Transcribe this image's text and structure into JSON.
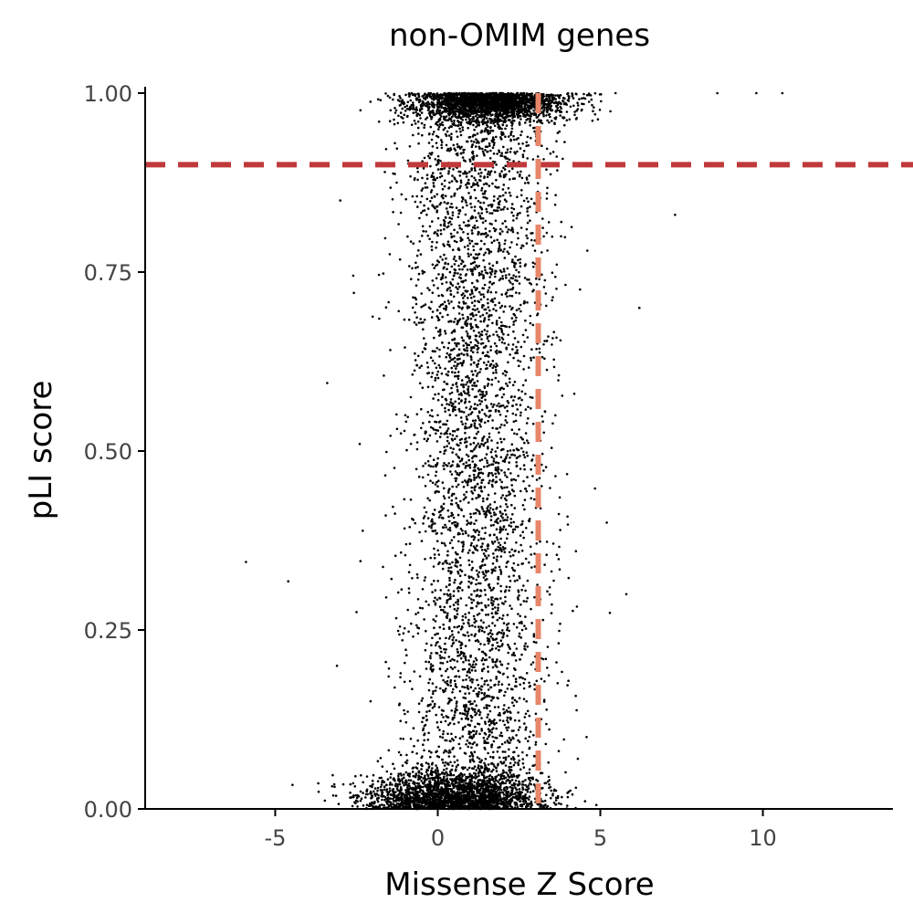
{
  "chart_data": {
    "type": "scatter",
    "title": "non-OMIM genes",
    "xlabel": "Missense Z Score",
    "ylabel": "pLI score",
    "xlim": [
      -9,
      14
    ],
    "ylim": [
      0,
      1
    ],
    "x_ticks": [
      -5,
      0,
      5,
      10
    ],
    "x_tick_labels": [
      "-5",
      "0",
      "5",
      "10"
    ],
    "y_ticks": [
      0,
      0.25,
      0.5,
      0.75,
      1.0
    ],
    "y_tick_labels": [
      "0.00",
      "0.25",
      "0.50",
      "0.75",
      "1.00"
    ],
    "grid": false,
    "legend": "none",
    "reference_lines": [
      {
        "orientation": "horizontal",
        "value": 0.9,
        "style": "dashed",
        "color": "#c0393b"
      },
      {
        "orientation": "vertical",
        "value": 3.09,
        "style": "dashed",
        "color": "#e8866a"
      }
    ],
    "series": [
      {
        "color": "#000000",
        "points_sample": [
          [
            -5.9,
            0.345
          ],
          [
            -4.6,
            0.318
          ],
          [
            -3.4,
            0.595
          ],
          [
            -3.0,
            0.85
          ],
          [
            -2.6,
            0.745
          ],
          [
            -2.5,
            0.275
          ],
          [
            -2.4,
            0.51
          ],
          [
            -3.1,
            0.2
          ],
          [
            -1.8,
            0.685
          ],
          [
            -1.6,
            0.41
          ],
          [
            -1.0,
            0.55
          ],
          [
            -0.5,
            0.72
          ],
          [
            0.0,
            0.55
          ],
          [
            0.2,
            0.3
          ],
          [
            0.5,
            0.8
          ],
          [
            0.8,
            0.45
          ],
          [
            1.0,
            0.15
          ],
          [
            1.2,
            0.62
          ],
          [
            1.5,
            0.35
          ],
          [
            1.8,
            0.9
          ],
          [
            2.0,
            0.05
          ],
          [
            2.3,
            0.7
          ],
          [
            2.6,
            0.25
          ],
          [
            3.0,
            0.48
          ],
          [
            3.4,
            0.66
          ],
          [
            3.8,
            0.82
          ],
          [
            4.2,
            0.58
          ],
          [
            4.6,
            0.78
          ],
          [
            5.2,
            0.4
          ],
          [
            5.8,
            0.3
          ],
          [
            6.2,
            0.7
          ],
          [
            7.3,
            0.83
          ],
          [
            8.6,
            1.0
          ],
          [
            9.8,
            1.0
          ],
          [
            10.6,
            1.0
          ],
          [
            -0.2,
            0.02
          ],
          [
            0.3,
            0.01
          ],
          [
            1.1,
            0.03
          ],
          [
            -1.5,
            0.005
          ],
          [
            2.2,
            0.01
          ],
          [
            0.6,
            0.99
          ],
          [
            1.4,
            0.995
          ],
          [
            2.1,
            0.985
          ],
          [
            3.5,
            0.998
          ],
          [
            -0.8,
            1.0
          ]
        ]
      }
    ]
  }
}
